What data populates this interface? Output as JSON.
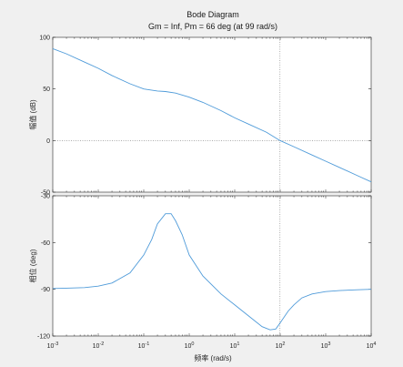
{
  "chart_data": [
    {
      "type": "line",
      "title": "Bode Diagram",
      "subtitle": "Gm = Inf,  Pm = 66 deg (at 99 rad/s)",
      "panel": "magnitude",
      "ylabel": "幅值 (dB)",
      "xlabel": "",
      "xscale": "log",
      "xlim": [
        0.001,
        10000
      ],
      "ylim": [
        -50,
        100
      ],
      "yticks": [
        "100",
        "50",
        "0",
        "-50"
      ],
      "grid": false,
      "reference_lines": [
        {
          "axis": "y",
          "value": 0,
          "style": "dotted"
        },
        {
          "axis": "x",
          "value": 99,
          "style": "dotted"
        }
      ],
      "line_color": "#4f9bd9",
      "series": [
        {
          "x": [
            0.001,
            0.002,
            0.005,
            0.01,
            0.02,
            0.05,
            0.1,
            0.2,
            0.3,
            0.5,
            1,
            2,
            5,
            10,
            20,
            50,
            99,
            200,
            500,
            1000,
            2000,
            5000,
            10000
          ],
          "values": [
            89,
            84,
            76,
            70,
            63,
            55,
            50,
            48,
            47.5,
            46,
            42,
            37,
            29,
            22,
            16,
            8,
            0,
            -6,
            -14,
            -20,
            -26,
            -34,
            -40
          ]
        }
      ]
    },
    {
      "type": "line",
      "panel": "phase",
      "ylabel": "相位 (deg)",
      "xlabel": "频率  (rad/s)",
      "xscale": "log",
      "xlim": [
        0.001,
        10000
      ],
      "ylim": [
        -120,
        -30
      ],
      "yticks": [
        "-30",
        "-60",
        "-90",
        "-120"
      ],
      "xticks": [
        "10-3",
        "10-2",
        "10-1",
        "100",
        "101",
        "102",
        "103",
        "104"
      ],
      "grid": false,
      "reference_lines": [
        {
          "axis": "x",
          "value": 99,
          "style": "dotted"
        }
      ],
      "line_color": "#4f9bd9",
      "series": [
        {
          "x": [
            0.001,
            0.002,
            0.005,
            0.01,
            0.02,
            0.05,
            0.1,
            0.15,
            0.2,
            0.3,
            0.4,
            0.5,
            0.7,
            1,
            2,
            5,
            10,
            20,
            40,
            60,
            80,
            100,
            150,
            200,
            300,
            500,
            1000,
            2000,
            5000,
            10000
          ],
          "values": [
            -89.5,
            -89.3,
            -88.9,
            -88,
            -86,
            -79.5,
            -68,
            -58,
            -48,
            -41.5,
            -41.5,
            -46,
            -55,
            -68,
            -81.5,
            -93,
            -100,
            -107,
            -114,
            -116,
            -115.5,
            -111.5,
            -104,
            -100,
            -95.5,
            -93,
            -91.5,
            -90.8,
            -90.3,
            -90
          ]
        }
      ]
    }
  ]
}
